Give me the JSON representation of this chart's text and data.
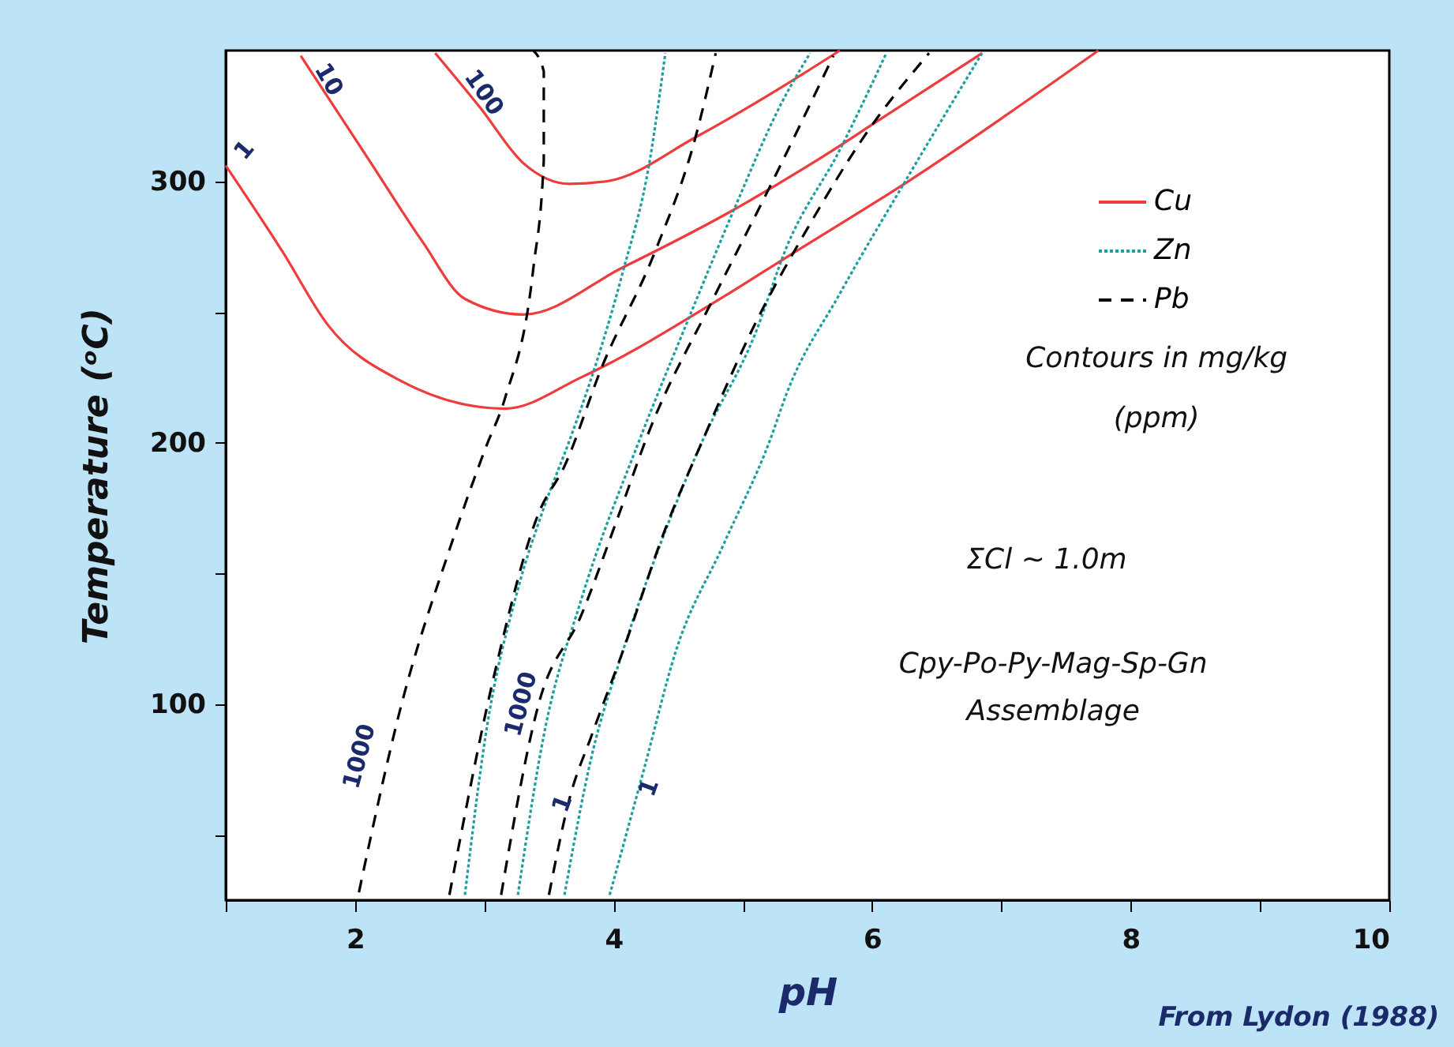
{
  "chart_data": {
    "type": "line",
    "xlabel": "pH",
    "ylabel": "Temperature (ᵒC)",
    "xlim": [
      1,
      10
    ],
    "xticks": [
      {
        "value": 1,
        "label": null
      },
      2,
      {
        "value": 3,
        "label": null
      },
      4,
      {
        "value": 5,
        "label": null
      },
      6,
      {
        "value": 7,
        "label": null
      },
      8,
      {
        "value": 9,
        "label": null
      },
      10
    ],
    "ylim": [
      25,
      350
    ],
    "yticks": [
      {
        "value": 50,
        "label": null
      },
      100,
      {
        "value": 150,
        "label": null
      },
      200,
      {
        "value": 250,
        "label": null
      },
      300
    ],
    "grid": false,
    "legend": "top right",
    "series": [
      {
        "name": "Cu",
        "color": "#ee3b3b",
        "line_style": "solid",
        "x": [
          1.0,
          1.44,
          1.79,
          2.34,
          3.16,
          3.75,
          4.89,
          5.34,
          6.28,
          7.75
        ],
        "values": [
          306,
          273,
          245,
          224,
          213,
          225,
          257,
          271,
          300,
          350
        ]
      },
      {
        "color": "#ee3b3b",
        "line_style": "solid",
        "x": [
          1.58,
          2.11,
          2.52,
          2.85,
          3.3,
          4.07,
          4.89,
          5.7,
          6.01,
          6.85
        ],
        "values": [
          348,
          308,
          277,
          255,
          249,
          267,
          288,
          312,
          322,
          349
        ]
      },
      {
        "color": "#ee3b3b",
        "line_style": "solid",
        "x": [
          2.62,
          2.97,
          3.3,
          3.66,
          3.95,
          4.64,
          5.3,
          5.75
        ],
        "values": [
          349,
          328,
          307,
          299,
          300,
          317,
          336,
          350
        ]
      },
      {
        "name": "Zn",
        "color": "#1a9e9e",
        "line_style": "dotted",
        "x": [
          2.85,
          3.01,
          3.26,
          3.46,
          3.66,
          3.83,
          4.07,
          4.28,
          4.4
        ],
        "values": [
          27,
          88,
          144,
          175,
          201,
          225,
          265,
          308,
          349
        ]
      },
      {
        "color": "#1a9e9e",
        "line_style": "dotted",
        "x": [
          3.26,
          3.46,
          3.75,
          4.2,
          4.56,
          4.93,
          5.3,
          5.52
        ],
        "values": [
          27,
          88,
          140,
          201,
          245,
          289,
          330,
          349
        ]
      },
      {
        "color": "#1a9e9e",
        "line_style": "dotted",
        "x": [
          3.62,
          3.83,
          4.07,
          4.36,
          4.69,
          5.09,
          5.34,
          5.75,
          6.11
        ],
        "values": [
          27,
          80,
          120,
          161,
          201,
          241,
          275,
          312,
          349
        ]
      },
      {
        "color": "#1a9e9e",
        "line_style": "dotted",
        "x": [
          3.97,
          4.24,
          4.48,
          4.85,
          5.21,
          5.34,
          5.75,
          6.28,
          6.85
        ],
        "values": [
          27,
          76,
          120,
          161,
          201,
          219,
          257,
          302,
          349
        ]
      },
      {
        "name": "Pb",
        "color": "#000000",
        "line_style": "dashed",
        "x": [
          2.03,
          2.36,
          2.73,
          3.01,
          3.16,
          3.38,
          3.46,
          3.46,
          3.38
        ],
        "values": [
          28,
          100,
          159,
          198,
          217,
          267,
          308,
          342,
          350
        ]
      },
      {
        "color": "#000000",
        "line_style": "dashed",
        "x": [
          2.73,
          3.09,
          3.42,
          3.62,
          3.91,
          4.32,
          4.64,
          4.79
        ],
        "values": [
          27,
          114,
          173,
          191,
          229,
          273,
          318,
          349
        ]
      },
      {
        "color": "#000000",
        "line_style": "dashed",
        "x": [
          3.13,
          3.42,
          3.75,
          4.03,
          4.28,
          4.77,
          5.21,
          5.7
        ],
        "values": [
          27,
          100,
          134,
          171,
          205,
          255,
          298,
          348
        ]
      },
      {
        "color": "#000000",
        "line_style": "dashed",
        "x": [
          3.5,
          3.66,
          3.83,
          4.07,
          4.4,
          4.69,
          5.09,
          5.5,
          5.95,
          6.44
        ],
        "values": [
          27,
          64,
          88,
          120,
          167,
          201,
          245,
          282,
          318,
          349
        ]
      }
    ],
    "annotations": [
      "1",
      "10",
      "100",
      "1000",
      "1000",
      "1",
      "1",
      "Contours in mg/kg",
      "(ppm)",
      "ΣCl ~ 1.0m",
      "Cpy-Po-Py-Mag-Sp-Gn",
      "Assemblage",
      "From Lydon (1988)"
    ]
  }
}
